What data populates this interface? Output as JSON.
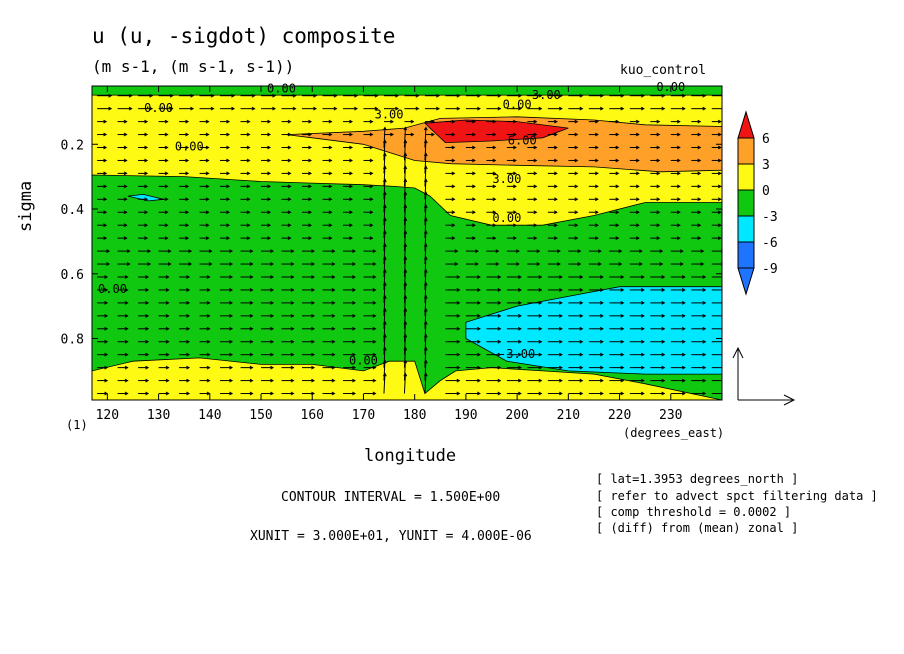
{
  "chart_data": {
    "type": "heatmap",
    "title": "u (u, -sigdot) composite",
    "subtitle": "(m s-1, (m s-1, s-1))",
    "dataset": "kuo_control",
    "xlabel": "longitude",
    "xunits": "(degrees_east)",
    "ylabel": "sigma",
    "panel_label": "(1)",
    "xlim": [
      117,
      240
    ],
    "ylim": [
      0.99,
      0.02
    ],
    "x_ticks": [
      120,
      130,
      140,
      150,
      160,
      170,
      180,
      190,
      200,
      210,
      220,
      230
    ],
    "x_tick_labels": [
      "120",
      "130",
      "140",
      "150",
      "160",
      "170",
      "180",
      "190",
      "200",
      "210",
      "220",
      "230"
    ],
    "y_ticks": [
      0.2,
      0.4,
      0.6,
      0.8
    ],
    "y_tick_labels": [
      "0.2",
      "0.4",
      "0.6",
      "0.8"
    ],
    "colorbar": {
      "levels": [
        -9,
        -6,
        -3,
        0,
        3,
        6
      ],
      "labels": [
        "6",
        "3",
        "0",
        "-3",
        "-6",
        "-9"
      ],
      "colors": {
        "lt_-9": "#1e73ff",
        "-9_-6": "#1e73ff",
        "-6_-3": "#00e8ff",
        "-3_0": "#10c810",
        "0_3": "#fffa14",
        "3_6": "#ffa028",
        "gt_6": "#f01414"
      }
    },
    "regions": [
      {
        "value_band": "0_3",
        "x": [
          117,
          240,
          240,
          117
        ],
        "y": [
          0.02,
          0.02,
          0.99,
          0.99
        ]
      },
      {
        "value_band": "-3_0",
        "desc_level": "0.00",
        "x": [
          117,
          135,
          150,
          160,
          170,
          176,
          180,
          183,
          187,
          195,
          205,
          215,
          225,
          240,
          240,
          225,
          215,
          205,
          195,
          188,
          185,
          182,
          180,
          175,
          170,
          160,
          150,
          138,
          125,
          117
        ],
        "y": [
          0.295,
          0.3,
          0.315,
          0.32,
          0.325,
          0.33,
          0.335,
          0.36,
          0.42,
          0.45,
          0.45,
          0.42,
          0.38,
          0.38,
          0.99,
          0.94,
          0.91,
          0.9,
          0.89,
          0.9,
          0.93,
          0.97,
          0.87,
          0.87,
          0.9,
          0.88,
          0.88,
          0.86,
          0.87,
          0.9
        ]
      },
      {
        "value_band": "3_6",
        "x": [
          155,
          170,
          178,
          185,
          200,
          215,
          225,
          240,
          240,
          228,
          215,
          200,
          187,
          180,
          170,
          160
        ],
        "y": [
          0.17,
          0.16,
          0.15,
          0.12,
          0.115,
          0.125,
          0.14,
          0.145,
          0.28,
          0.285,
          0.27,
          0.265,
          0.26,
          0.25,
          0.2,
          0.18
        ]
      },
      {
        "value_band": "gt_6",
        "x": [
          182,
          190,
          200,
          210,
          205,
          195,
          186
        ],
        "y": [
          0.135,
          0.125,
          0.13,
          0.15,
          0.18,
          0.19,
          0.195
        ]
      },
      {
        "value_band": "-6_-3",
        "x": [
          190,
          200,
          210,
          220,
          240,
          240,
          225,
          210,
          198,
          190
        ],
        "y": [
          0.75,
          0.7,
          0.67,
          0.64,
          0.64,
          0.91,
          0.91,
          0.9,
          0.87,
          0.8
        ]
      },
      {
        "value_band": "-3_0",
        "x": [
          117,
          240,
          240,
          117
        ],
        "y": [
          0.02,
          0.02,
          0.048,
          0.048
        ]
      },
      {
        "value_band": "-6_-3",
        "x": [
          124,
          127,
          131,
          128
        ],
        "y": [
          0.36,
          0.355,
          0.37,
          0.375
        ]
      }
    ],
    "contour_labels": [
      {
        "text": "0.00",
        "x": 154,
        "y": 0.04
      },
      {
        "text": "-3.00",
        "x": 205,
        "y": 0.06
      },
      {
        "text": "0.00",
        "x": 230,
        "y": 0.035
      },
      {
        "text": "0.00",
        "x": 130,
        "y": 0.1
      },
      {
        "text": "0.00",
        "x": 200,
        "y": 0.09
      },
      {
        "text": "3.00",
        "x": 175,
        "y": 0.12
      },
      {
        "text": "0.00",
        "x": 136,
        "y": 0.22
      },
      {
        "text": "6.00",
        "x": 201,
        "y": 0.2
      },
      {
        "text": "3.00",
        "x": 198,
        "y": 0.32
      },
      {
        "text": "0.00",
        "x": 198,
        "y": 0.44
      },
      {
        "text": "0.00",
        "x": 121,
        "y": 0.66
      },
      {
        "text": "0.00",
        "x": 170,
        "y": 0.88
      },
      {
        "text": "-3.00",
        "x": 200,
        "y": 0.86
      }
    ],
    "vector_field": {
      "x": [
        118,
        122,
        126,
        130,
        134,
        138,
        142,
        146,
        150,
        154,
        158,
        162,
        166,
        170,
        174,
        178,
        182,
        186,
        190,
        194,
        198,
        202,
        206,
        210,
        214,
        218,
        222,
        226,
        230,
        234,
        238
      ],
      "y": [
        0.05,
        0.09,
        0.13,
        0.17,
        0.21,
        0.25,
        0.29,
        0.33,
        0.37,
        0.41,
        0.45,
        0.49,
        0.53,
        0.57,
        0.61,
        0.65,
        0.69,
        0.73,
        0.77,
        0.81,
        0.85,
        0.89,
        0.93,
        0.97
      ],
      "strong_updraft_longitudes": [
        175,
        178,
        181,
        183
      ]
    },
    "reference_vector": {
      "xunit": 30.0,
      "yunit": 4e-06
    }
  },
  "annotations": {
    "contour_interval": "CONTOUR INTERVAL = 1.500E+00",
    "units_line": "XUNIT = 3.000E+01, YUNIT = 4.000E-06",
    "notes": [
      "[ lat=1.3953 degrees_north ]",
      "[ refer to advect spct filtering data ]",
      "[ comp threshold = 0.0002 ]",
      "[ (diff) from (mean) zonal ]"
    ]
  }
}
